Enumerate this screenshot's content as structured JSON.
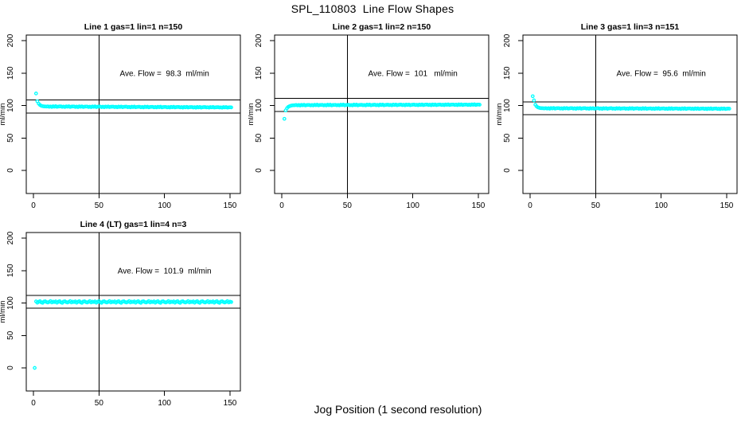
{
  "page": {
    "title": "SPL_110803  Line Flow Shapes",
    "x_axis_label": "Jog Position (1 second resolution)"
  },
  "colors": {
    "points": "#00ffff",
    "axis": "#000000",
    "background": "#ffffff"
  },
  "chart_data": [
    {
      "type": "scatter",
      "title": "Line 1 gas=1 lin=1 n=150",
      "annotation": "Ave. Flow =  98.3  ml/min",
      "annotation_xy": [
        100,
        150
      ],
      "ave_flow": 98.3,
      "n": 150,
      "ylabel": "ml/min",
      "xlim": [
        -5.5,
        158
      ],
      "ylim": [
        -35,
        209
      ],
      "xticks": [
        0,
        50,
        100,
        150
      ],
      "yticks": [
        0,
        50,
        100,
        150,
        200
      ],
      "vline_x": 50,
      "hlines": [
        108.3,
        88.3
      ],
      "grid": false,
      "series": {
        "x_start": 2,
        "x_step": 1,
        "y": [
          118.5,
          106.5,
          102.8,
          100.8,
          99.6,
          99.0,
          98.7,
          98.5,
          98.4,
          98.7,
          98.0,
          98.5,
          97.8,
          98.8,
          98.2,
          98.9,
          97.9,
          98.4,
          98.6,
          98.6,
          97.9,
          98.4,
          97.7,
          98.7,
          98.1,
          98.8,
          97.8,
          98.3,
          98.5,
          98.5,
          97.8,
          98.3,
          97.6,
          98.6,
          98.0,
          98.7,
          97.7,
          98.2,
          98.4,
          98.4,
          97.7,
          98.2,
          97.5,
          98.5,
          97.9,
          98.6,
          97.6,
          98.1,
          98.3,
          98.3,
          97.6,
          98.1,
          97.4,
          98.4,
          97.8,
          98.5,
          97.5,
          98.0,
          98.2,
          98.2,
          97.5,
          98.0,
          97.3,
          98.3,
          97.7,
          98.4,
          97.4,
          97.9,
          98.1,
          98.1,
          97.4,
          97.9,
          97.2,
          98.2,
          97.6,
          98.3,
          97.3,
          97.8,
          98.0,
          98.0,
          97.3,
          97.8,
          97.1,
          98.1,
          97.5,
          98.2,
          97.2,
          97.7,
          97.9,
          97.9,
          97.2,
          97.7,
          97.0,
          98.0,
          97.4,
          98.1,
          97.1,
          97.6,
          97.8,
          97.8,
          97.1,
          97.6,
          96.9,
          97.9,
          97.3,
          98.0,
          97.0,
          97.5,
          97.7,
          97.7,
          97.0,
          97.5,
          96.8,
          97.8,
          97.2,
          97.9,
          96.9,
          97.4,
          97.6,
          97.6,
          96.9,
          97.4,
          96.7,
          97.7,
          97.1,
          97.8,
          96.8,
          97.3,
          97.5,
          97.5,
          97.0,
          97.3,
          96.8,
          97.6,
          97.2,
          97.7,
          96.9,
          97.2,
          97.4,
          97.4,
          96.9,
          97.2,
          96.7,
          97.5,
          97.1,
          97.6,
          96.8,
          97.1,
          97.3,
          97.0
        ]
      }
    },
    {
      "type": "scatter",
      "title": "Line 2 gas=1 lin=2 n=150",
      "annotation": "Ave. Flow =  101   ml/min",
      "annotation_xy": [
        100,
        150
      ],
      "ave_flow": 101,
      "n": 150,
      "ylabel": "ml/min",
      "xlim": [
        -5.5,
        158
      ],
      "ylim": [
        -35,
        209
      ],
      "xticks": [
        0,
        50,
        100,
        150
      ],
      "yticks": [
        0,
        50,
        100,
        150,
        200
      ],
      "vline_x": 50,
      "hlines": [
        111,
        91
      ],
      "grid": false,
      "series": {
        "x_start": 2,
        "x_step": 1,
        "y": [
          79.5,
          92.5,
          96.0,
          97.9,
          99.0,
          99.8,
          100.2,
          100.4,
          100.5,
          100.9,
          100.2,
          100.7,
          100.0,
          101.0,
          100.4,
          101.1,
          100.1,
          100.6,
          100.8,
          100.9,
          100.3,
          100.7,
          100.1,
          101.1,
          100.5,
          101.2,
          100.2,
          100.7,
          100.9,
          101.0,
          100.3,
          100.8,
          100.1,
          101.2,
          100.5,
          101.2,
          100.2,
          100.7,
          100.9,
          101.0,
          100.4,
          100.8,
          100.2,
          101.2,
          100.6,
          101.3,
          100.3,
          100.8,
          101.0,
          101.1,
          100.4,
          100.9,
          100.2,
          101.3,
          100.6,
          101.3,
          100.3,
          100.8,
          101.0,
          101.1,
          100.5,
          100.9,
          100.3,
          101.3,
          100.7,
          101.4,
          100.4,
          100.9,
          101.1,
          101.2,
          100.5,
          101.0,
          100.3,
          101.4,
          100.7,
          101.4,
          100.4,
          100.9,
          101.1,
          101.2,
          100.6,
          101.0,
          100.4,
          101.4,
          100.8,
          101.5,
          100.5,
          101.0,
          101.2,
          101.3,
          100.6,
          101.1,
          100.4,
          101.5,
          100.8,
          101.5,
          100.5,
          101.0,
          101.2,
          101.3,
          100.7,
          101.1,
          100.5,
          101.5,
          100.9,
          101.6,
          100.6,
          101.1,
          101.3,
          101.4,
          100.7,
          101.2,
          100.5,
          101.6,
          100.9,
          101.6,
          100.6,
          101.1,
          101.3,
          101.4,
          100.8,
          101.2,
          100.6,
          101.6,
          101.0,
          101.7,
          100.7,
          101.2,
          101.4,
          101.5,
          100.8,
          101.3,
          100.6,
          101.7,
          101.0,
          101.7,
          100.7,
          101.2,
          101.4,
          101.5,
          100.9,
          101.3,
          100.7,
          101.7,
          101.1,
          101.8,
          100.8,
          101.3,
          101.5,
          101.2
        ]
      }
    },
    {
      "type": "scatter",
      "title": "Line 3 gas=1 lin=3 n=151",
      "annotation": "Ave. Flow =  95.6  ml/min",
      "annotation_xy": [
        100,
        150
      ],
      "ave_flow": 95.6,
      "n": 151,
      "ylabel": "ml/min",
      "xlim": [
        -5.5,
        158
      ],
      "ylim": [
        -35,
        209
      ],
      "xticks": [
        0,
        50,
        100,
        150
      ],
      "yticks": [
        0,
        50,
        100,
        150,
        200
      ],
      "vline_x": 50,
      "hlines": [
        105.6,
        85.6
      ],
      "grid": false,
      "series": {
        "x_start": 2,
        "x_step": 1,
        "y": [
          114.3,
          108.0,
          101.2,
          98.6,
          97.2,
          96.4,
          96.0,
          95.8,
          95.7,
          95.6,
          96.0,
          95.3,
          95.8,
          95.1,
          96.1,
          95.5,
          96.2,
          95.2,
          95.7,
          95.9,
          96.0,
          95.3,
          95.7,
          95.1,
          96.1,
          95.4,
          96.1,
          95.2,
          95.6,
          95.8,
          95.9,
          95.2,
          95.7,
          95.0,
          96.0,
          95.4,
          96.1,
          95.1,
          95.6,
          95.8,
          95.9,
          95.2,
          95.6,
          95.0,
          96.0,
          95.3,
          96.0,
          95.1,
          95.5,
          95.7,
          95.8,
          95.1,
          95.6,
          94.9,
          95.9,
          95.3,
          96.0,
          95.0,
          95.5,
          95.7,
          95.8,
          95.1,
          95.5,
          94.9,
          95.9,
          95.2,
          95.9,
          95.0,
          95.4,
          95.6,
          95.7,
          95.0,
          95.5,
          94.8,
          95.8,
          95.2,
          95.9,
          94.9,
          95.4,
          95.6,
          95.7,
          95.0,
          95.4,
          94.8,
          95.8,
          95.1,
          95.8,
          94.9,
          95.3,
          95.5,
          95.6,
          94.9,
          95.4,
          94.7,
          95.7,
          95.1,
          95.8,
          94.8,
          95.3,
          95.5,
          95.6,
          94.9,
          95.3,
          94.7,
          95.7,
          95.0,
          95.7,
          94.8,
          95.2,
          95.4,
          95.5,
          94.8,
          95.3,
          94.6,
          95.6,
          95.0,
          95.7,
          94.7,
          95.2,
          95.4,
          95.5,
          94.8,
          95.2,
          94.6,
          95.6,
          94.9,
          95.6,
          94.7,
          95.1,
          95.3,
          95.4,
          94.7,
          95.2,
          94.5,
          95.5,
          94.9,
          95.6,
          94.6,
          95.1,
          95.3,
          95.4,
          94.7,
          95.1,
          94.5,
          95.5,
          94.8,
          95.5,
          94.6,
          95.0,
          95.2,
          95.1
        ]
      }
    },
    {
      "type": "scatter",
      "title": "Line 4 (LT) gas=1 lin=4 n=3",
      "annotation": "Ave. Flow =  101.9  ml/min",
      "annotation_xy": [
        100,
        150
      ],
      "ave_flow": 101.9,
      "n": 3,
      "ylabel": "ml/min",
      "xlim": [
        -5.5,
        158
      ],
      "ylim": [
        -35,
        209
      ],
      "xticks": [
        0,
        50,
        100,
        150
      ],
      "yticks": [
        0,
        50,
        100,
        150,
        200
      ],
      "vline_x": 50,
      "hlines": [
        111.9,
        91.9
      ],
      "grid": false,
      "series": {
        "x_start": 1,
        "x_step": 1,
        "y": [
          0.0,
          102.5,
          100.5,
          101.9,
          102.8,
          101.0,
          100.3,
          102.2,
          102.6,
          101.3,
          100.7,
          101.7,
          102.9,
          100.8,
          102.1,
          101.5,
          102.5,
          100.5,
          101.9,
          102.8,
          101.0,
          100.3,
          102.2,
          102.6,
          101.3,
          100.7,
          101.7,
          102.9,
          100.8,
          102.1,
          101.5,
          102.5,
          100.5,
          101.9,
          102.8,
          101.0,
          100.3,
          102.2,
          102.6,
          101.3,
          100.7,
          101.7,
          102.9,
          100.8,
          102.1,
          101.5,
          102.5,
          100.5,
          101.9,
          102.8,
          101.0,
          100.3,
          102.2,
          102.6,
          101.3,
          100.7,
          101.7,
          102.9,
          100.8,
          102.1,
          101.5,
          102.5,
          100.5,
          101.9,
          102.8,
          101.0,
          100.3,
          102.2,
          102.6,
          101.3,
          100.7,
          101.7,
          102.9,
          100.8,
          102.1,
          101.5,
          102.5,
          100.5,
          101.9,
          102.8,
          101.0,
          100.3,
          102.2,
          102.6,
          101.3,
          100.7,
          101.7,
          102.9,
          100.8,
          102.1,
          101.5,
          102.5,
          100.5,
          101.9,
          102.8,
          101.0,
          100.3,
          102.2,
          102.6,
          101.3,
          100.7,
          101.7,
          102.9,
          100.8,
          102.1,
          101.5,
          102.5,
          100.5,
          101.9,
          102.8,
          101.0,
          100.3,
          102.2,
          102.6,
          101.3,
          100.7,
          101.7,
          102.9,
          100.8,
          102.1,
          101.5,
          102.5,
          100.5,
          101.9,
          102.8,
          101.0,
          100.3,
          102.2,
          102.6,
          101.3,
          100.7,
          101.7,
          102.9,
          100.8,
          102.1,
          101.5,
          102.5,
          100.5,
          101.9,
          102.8,
          101.0,
          100.3,
          102.2,
          102.6,
          101.3,
          100.7,
          101.7,
          102.9,
          100.8,
          102.1,
          101.5
        ]
      }
    }
  ]
}
